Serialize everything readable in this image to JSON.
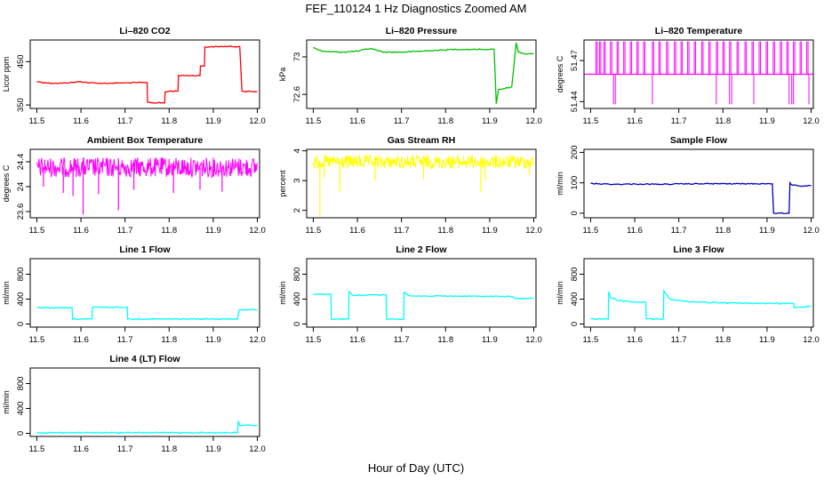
{
  "figure": {
    "title": "FEF_110124  1 Hz Diagnostics Zoomed AM",
    "xlabel": "Hour of Day (UTC)"
  },
  "chart_data": [
    {
      "type": "line",
      "title": "Li–820 CO2",
      "ylabel": "Licor ppm",
      "color": "#ff0000",
      "xlim": [
        11.485,
        12.005
      ],
      "ylim": [
        342,
        500
      ],
      "yticks": [
        350,
        450
      ],
      "xticks": [
        11.5,
        11.6,
        11.7,
        11.8,
        11.9,
        12.0
      ],
      "x": [
        11.5,
        11.52,
        11.55,
        11.58,
        11.6,
        11.62,
        11.65,
        11.7,
        11.75,
        11.751,
        11.76,
        11.79,
        11.791,
        11.8,
        11.82,
        11.821,
        11.85,
        11.87,
        11.871,
        11.88,
        11.881,
        11.92,
        11.96,
        11.965,
        11.97,
        12.0
      ],
      "y": [
        404,
        401,
        400,
        402,
        404,
        401,
        400,
        401,
        402,
        357,
        355,
        355,
        380,
        382,
        382,
        418,
        418,
        418,
        440,
        440,
        484,
        485,
        485,
        382,
        381,
        381
      ]
    },
    {
      "type": "line",
      "title": "Li–820 Pressure",
      "ylabel": "kPa",
      "color": "#00c000",
      "xlim": [
        11.485,
        12.005
      ],
      "ylim": [
        72.45,
        73.18
      ],
      "yticks": [
        72.6,
        73.0
      ],
      "xticks": [
        11.5,
        11.6,
        11.7,
        11.8,
        11.9,
        12.0
      ],
      "x": [
        11.5,
        11.52,
        11.56,
        11.6,
        11.63,
        11.66,
        11.7,
        11.74,
        11.78,
        11.82,
        11.86,
        11.9,
        11.91,
        11.915,
        11.92,
        11.93,
        11.95,
        11.96,
        11.965,
        11.975,
        11.985,
        12.0
      ],
      "y": [
        73.1,
        73.06,
        73.05,
        73.06,
        73.09,
        73.05,
        73.05,
        73.06,
        73.07,
        73.08,
        73.08,
        73.08,
        73.08,
        72.5,
        72.65,
        72.66,
        72.68,
        73.15,
        73.05,
        73.04,
        73.03,
        73.03
      ]
    },
    {
      "type": "line",
      "title": "Li–820 Temperature",
      "ylabel": "degrees C",
      "color": "#ff00ff",
      "xlim": [
        11.485,
        12.005
      ],
      "ylim": [
        51.435,
        51.485
      ],
      "yticks": [
        51.44,
        51.47
      ],
      "xticks": [
        11.5,
        11.6,
        11.7,
        11.8,
        11.9,
        12.0
      ],
      "baseline": 51.46,
      "spikes_up": [
        11.512,
        11.52,
        11.53,
        11.545,
        11.56,
        11.575,
        11.59,
        11.605,
        11.62,
        11.64,
        11.655,
        11.672,
        11.69,
        11.705,
        11.72,
        11.735,
        11.752,
        11.768,
        11.785,
        11.8,
        11.815,
        11.832,
        11.85,
        11.866,
        11.882,
        11.898,
        11.914,
        11.93,
        11.945,
        11.96,
        11.975,
        11.99
      ],
      "spikes_down": [
        11.552,
        11.556,
        11.64,
        11.785,
        11.815,
        11.82,
        11.87,
        11.95,
        11.956,
        11.96,
        11.995
      ],
      "spike_high": 51.484,
      "spike_low": 51.438
    },
    {
      "type": "line",
      "title": "Ambient Box Temperature",
      "ylabel": "degrees C",
      "color": "#ff00ff",
      "xlim": [
        11.485,
        12.005
      ],
      "ylim": [
        23.5,
        24.6
      ],
      "yticks": [
        23.6,
        24.0,
        24.4
      ],
      "xticks": [
        11.5,
        11.6,
        11.7,
        11.8,
        11.9,
        12.0
      ],
      "band": [
        24.15,
        24.47
      ],
      "dips": [
        [
          11.515,
          24.0
        ],
        [
          11.56,
          23.9
        ],
        [
          11.582,
          23.85
        ],
        [
          11.605,
          23.55
        ],
        [
          11.64,
          23.88
        ],
        [
          11.685,
          23.62
        ],
        [
          11.72,
          23.95
        ],
        [
          11.81,
          23.9
        ],
        [
          11.87,
          23.95
        ],
        [
          11.92,
          23.92
        ]
      ]
    },
    {
      "type": "line",
      "title": "Gas Stream RH",
      "ylabel": "percent",
      "color": "#ffff00",
      "xlim": [
        11.485,
        12.005
      ],
      "ylim": [
        1.75,
        4.05
      ],
      "yticks": [
        2.0,
        3.0,
        4.0
      ],
      "xticks": [
        11.5,
        11.6,
        11.7,
        11.8,
        11.9,
        12.0
      ],
      "band": [
        3.4,
        3.85
      ],
      "dips": [
        [
          11.515,
          1.8
        ],
        [
          11.525,
          3.1
        ],
        [
          11.56,
          2.6
        ],
        [
          11.64,
          3.0
        ],
        [
          11.75,
          3.05
        ],
        [
          11.88,
          2.6
        ],
        [
          11.89,
          3.0
        ],
        [
          11.99,
          3.2
        ]
      ]
    },
    {
      "type": "line",
      "title": "Sample Flow",
      "ylabel": "ml/min",
      "color": "#0000c0",
      "xlim": [
        11.485,
        12.005
      ],
      "ylim": [
        -15,
        210
      ],
      "yticks": [
        0,
        100,
        200
      ],
      "xticks": [
        11.5,
        11.6,
        11.7,
        11.8,
        11.9,
        12.0
      ],
      "x": [
        11.5,
        11.55,
        11.6,
        11.65,
        11.7,
        11.75,
        11.8,
        11.85,
        11.9,
        11.912,
        11.915,
        11.95,
        11.952,
        11.955,
        11.97,
        12.0
      ],
      "y": [
        98,
        95,
        96,
        95,
        96,
        97,
        97,
        97,
        97,
        97,
        0,
        0,
        100,
        94,
        90,
        90
      ]
    },
    {
      "type": "line",
      "title": "Line 1 Flow",
      "ylabel": "ml/min",
      "color": "#00ffff",
      "xlim": [
        11.485,
        12.005
      ],
      "ylim": [
        -50,
        1050
      ],
      "yticks": [
        0,
        400,
        800
      ],
      "xticks": [
        11.5,
        11.6,
        11.7,
        11.8,
        11.9,
        12.0
      ],
      "x": [
        11.5,
        11.58,
        11.581,
        11.625,
        11.626,
        11.705,
        11.706,
        11.955,
        11.958,
        11.96,
        12.0
      ],
      "y": [
        260,
        260,
        80,
        80,
        270,
        270,
        80,
        80,
        210,
        230,
        230
      ]
    },
    {
      "type": "line",
      "title": "Line 2 Flow",
      "ylabel": "ml/min",
      "color": "#00ffff",
      "xlim": [
        11.485,
        12.005
      ],
      "ylim": [
        -50,
        1050
      ],
      "yticks": [
        0,
        400,
        800
      ],
      "xticks": [
        11.5,
        11.6,
        11.7,
        11.8,
        11.9,
        12.0
      ],
      "x": [
        11.5,
        11.54,
        11.541,
        11.58,
        11.581,
        11.59,
        11.665,
        11.666,
        11.705,
        11.706,
        11.72,
        11.9,
        11.95,
        11.96,
        12.0
      ],
      "y": [
        480,
        480,
        80,
        80,
        520,
        460,
        470,
        80,
        80,
        510,
        450,
        445,
        440,
        410,
        410
      ]
    },
    {
      "type": "line",
      "title": "Line 3 Flow",
      "ylabel": "ml/min",
      "color": "#00ffff",
      "xlim": [
        11.485,
        12.005
      ],
      "ylim": [
        -50,
        1050
      ],
      "yticks": [
        0,
        400,
        800
      ],
      "xticks": [
        11.5,
        11.6,
        11.7,
        11.8,
        11.9,
        12.0
      ],
      "x": [
        11.5,
        11.54,
        11.541,
        11.545,
        11.56,
        11.6,
        11.625,
        11.626,
        11.665,
        11.666,
        11.68,
        11.72,
        11.8,
        11.9,
        11.96,
        11.962,
        12.0
      ],
      "y": [
        80,
        80,
        520,
        430,
        380,
        350,
        350,
        80,
        80,
        530,
        400,
        360,
        340,
        330,
        330,
        260,
        290
      ]
    },
    {
      "type": "line",
      "title": "Line 4 (LT) Flow",
      "ylabel": "ml/min",
      "color": "#00ffff",
      "xlim": [
        11.485,
        12.005
      ],
      "ylim": [
        -50,
        1050
      ],
      "yticks": [
        0,
        400,
        800
      ],
      "xticks": [
        11.5,
        11.6,
        11.7,
        11.8,
        11.9,
        12.0
      ],
      "x": [
        11.5,
        11.6,
        11.7,
        11.8,
        11.9,
        11.955,
        11.957,
        11.96,
        12.0
      ],
      "y": [
        10,
        10,
        10,
        10,
        10,
        10,
        200,
        130,
        130
      ]
    }
  ]
}
